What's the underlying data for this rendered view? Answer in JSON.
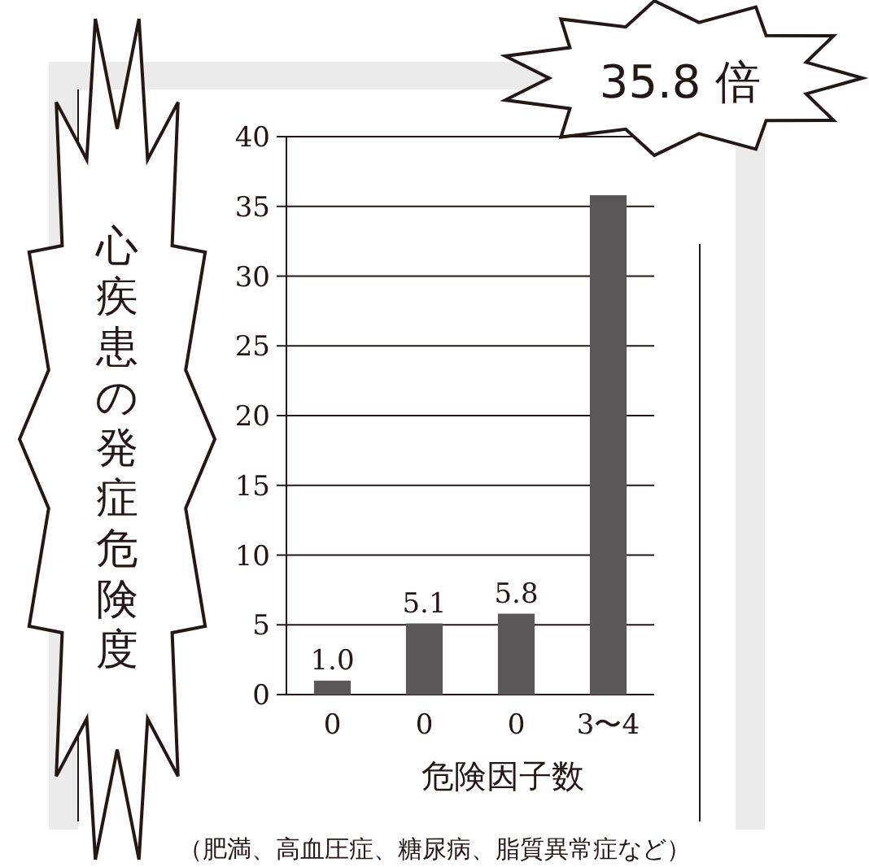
{
  "chart_data": {
    "type": "bar",
    "ylabel": "心疾患の発症危険度",
    "xlabel": "危険因子数",
    "categories": [
      "0",
      "0",
      "0",
      "3〜4"
    ],
    "values": [
      1.0,
      5.1,
      5.8,
      35.8
    ],
    "value_labels": [
      "1.0",
      "5.1",
      "5.8",
      null
    ],
    "color": "#595757",
    "ylim": [
      0,
      40
    ],
    "yticks": [
      0,
      5,
      10,
      15,
      20,
      25,
      30,
      35,
      40
    ],
    "grid": "y",
    "annotations": [
      "35.8 倍",
      "（肥満、高血圧症、糖尿病、脂質異常症など）"
    ]
  }
}
